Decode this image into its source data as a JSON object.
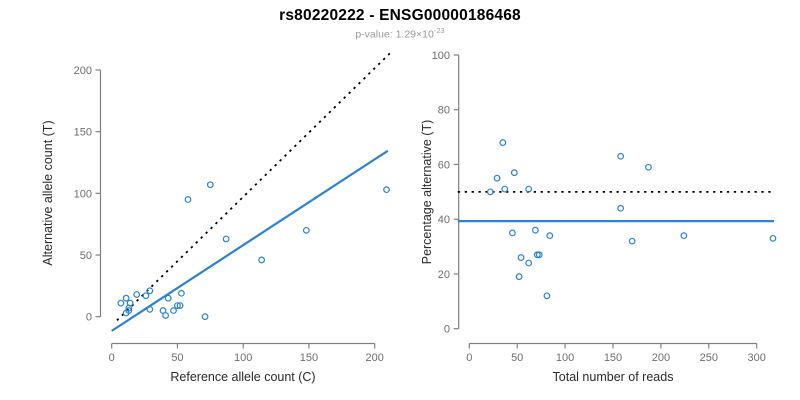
{
  "header": {
    "title": "rs80220222 - ENSG00000186468",
    "subtitle_base": "p-value: 1.29×10",
    "subtitle_exponent": "-23"
  },
  "colors": {
    "accent": "#2B82D9",
    "reference_line": "#000000",
    "axis": "#808080",
    "tick_text": "#6e6e6e",
    "label_text": "#2b2b2b",
    "subtitle_text": "#9a9a9a"
  },
  "chart_data": [
    {
      "type": "scatter",
      "name": "allele-counts-scatter",
      "xlabel": "Reference allele count (C)",
      "ylabel": "Alternative allele count (T)",
      "xticks": [
        0,
        50,
        100,
        150,
        200
      ],
      "yticks": [
        0,
        50,
        100,
        150,
        200
      ],
      "xlim": [
        -8,
        218
      ],
      "ylim": [
        -13,
        218
      ],
      "grid": false,
      "legend": "none",
      "points": [
        [
          7,
          11
        ],
        [
          11,
          15
        ],
        [
          13,
          7
        ],
        [
          13,
          5
        ],
        [
          11,
          3
        ],
        [
          14,
          11
        ],
        [
          19,
          18
        ],
        [
          26,
          17
        ],
        [
          29,
          21
        ],
        [
          29,
          6
        ],
        [
          39,
          5
        ],
        [
          41,
          1
        ],
        [
          43,
          15
        ],
        [
          47,
          5
        ],
        [
          50,
          9
        ],
        [
          52,
          9
        ],
        [
          53,
          19
        ],
        [
          71,
          0
        ],
        [
          58,
          95
        ],
        [
          75,
          107
        ],
        [
          87,
          63
        ],
        [
          114,
          46
        ],
        [
          148,
          70
        ],
        [
          209,
          103
        ]
      ],
      "lines": [
        {
          "name": "identity-reference-line",
          "style": "dotted",
          "color": "reference_line",
          "x1": 4,
          "y1": -3,
          "x2": 212,
          "y2": 214
        },
        {
          "name": "fitted-ratio-line",
          "style": "solid",
          "color": "accent",
          "x1": 0,
          "y1": -11.5,
          "x2": 210,
          "y2": 134.5
        }
      ]
    },
    {
      "type": "scatter",
      "name": "percentage-scatter",
      "xlabel": "Total number of reads",
      "ylabel": "Percentage alternative (T)",
      "xticks": [
        0,
        50,
        100,
        150,
        200,
        250,
        300
      ],
      "yticks": [
        0,
        20,
        40,
        60,
        80,
        100
      ],
      "xlim": [
        -12,
        318
      ],
      "ylim": [
        0,
        100
      ],
      "grid": false,
      "legend": "none",
      "points": [
        [
          35,
          68
        ],
        [
          29,
          55
        ],
        [
          47,
          57
        ],
        [
          22,
          50
        ],
        [
          37,
          51
        ],
        [
          62,
          51
        ],
        [
          158,
          63
        ],
        [
          187,
          59
        ],
        [
          158,
          44
        ],
        [
          45,
          35
        ],
        [
          69,
          36
        ],
        [
          84,
          34
        ],
        [
          170,
          32
        ],
        [
          224,
          34
        ],
        [
          317,
          33
        ],
        [
          54,
          26
        ],
        [
          62,
          24
        ],
        [
          71,
          27
        ],
        [
          73,
          27
        ],
        [
          52,
          19
        ],
        [
          81,
          12
        ]
      ],
      "lines": [
        {
          "name": "expected-50pct-line",
          "style": "dotted",
          "color": "reference_line",
          "x1": -12,
          "y1": 50,
          "x2": 318,
          "y2": 50
        },
        {
          "name": "observed-pct-line",
          "style": "solid",
          "color": "accent",
          "x1": -12,
          "y1": 39.3,
          "x2": 318,
          "y2": 39.3
        }
      ]
    }
  ]
}
